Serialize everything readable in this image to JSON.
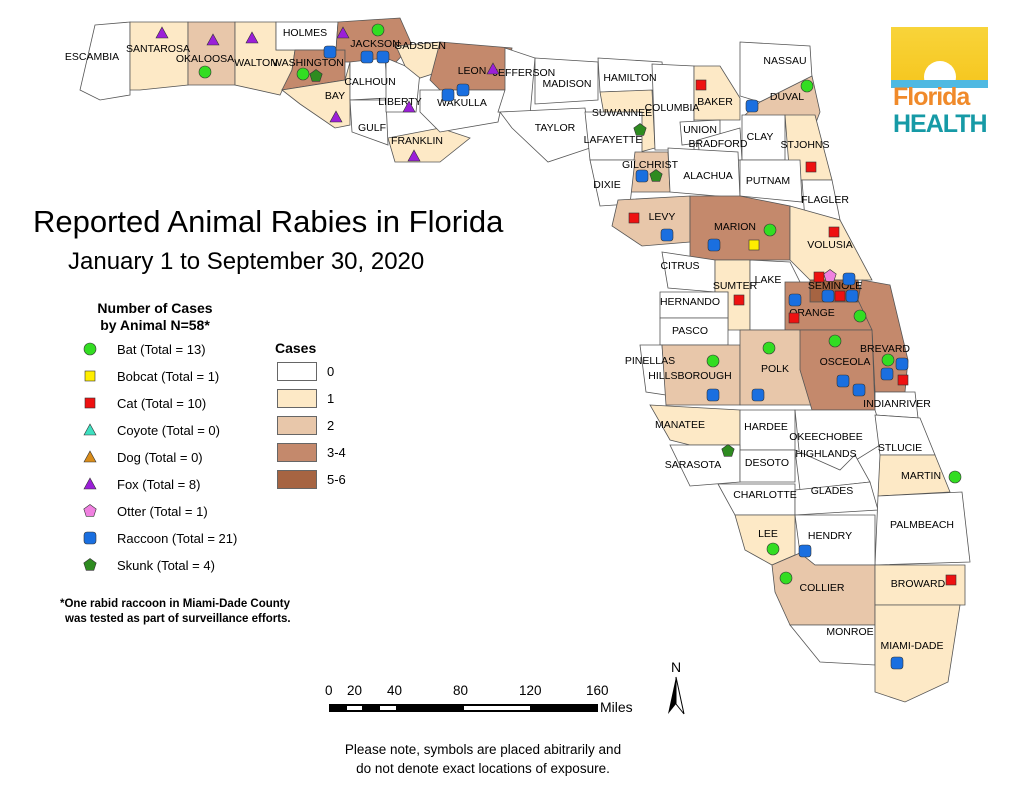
{
  "title": "Reported Animal Rabies in Florida",
  "subtitle": "January 1 to September 30, 2020",
  "logo": {
    "line1": "Florida",
    "line2": "HEALTH"
  },
  "animal_legend": {
    "heading_line1": "Number of Cases",
    "heading_line2": "by Animal N=58*",
    "items": [
      {
        "animal": "bat",
        "label": "Bat (Total = 13)",
        "shape": "circle",
        "color": "#33dd22"
      },
      {
        "animal": "bobcat",
        "label": "Bobcat (Total = 1)",
        "shape": "square",
        "color": "#ffee00"
      },
      {
        "animal": "cat",
        "label": "Cat (Total = 10)",
        "shape": "square",
        "color": "#ee1111"
      },
      {
        "animal": "coyote",
        "label": "Coyote (Total = 0)",
        "shape": "triangle",
        "color": "#3ee0c0"
      },
      {
        "animal": "dog",
        "label": "Dog (Total = 0)",
        "shape": "triangle",
        "color": "#d98c1a"
      },
      {
        "animal": "fox",
        "label": "Fox (Total = 8)",
        "shape": "triangle",
        "color": "#9b1fd8"
      },
      {
        "animal": "otter",
        "label": "Otter (Total = 1)",
        "shape": "pentagon",
        "color": "#f080e0"
      },
      {
        "animal": "raccoon",
        "label": "Raccoon (Total = 21)",
        "shape": "rounded-square",
        "color": "#1a6fe0"
      },
      {
        "animal": "skunk",
        "label": "Skunk (Total = 4)",
        "shape": "pentagon",
        "color": "#2e8b20"
      }
    ]
  },
  "cases_legend": {
    "heading": "Cases",
    "classes": [
      {
        "label": "0",
        "color": "#ffffff"
      },
      {
        "label": "1",
        "color": "#fde9c6"
      },
      {
        "label": "2",
        "color": "#e8c7aa"
      },
      {
        "label": "3-4",
        "color": "#c4896c"
      },
      {
        "label": "5-6",
        "color": "#a66442"
      }
    ]
  },
  "footnote_line1": "*One rabid raccoon in Miami-Dade County",
  "footnote_line2": "was tested as part of surveillance efforts.",
  "scale": {
    "ticks": [
      "0",
      "20",
      "40",
      "80",
      "120",
      "160"
    ],
    "unit": "Miles"
  },
  "north_label": "N",
  "note_line1": "Please note, symbols are placed abitrarily and",
  "note_line2": "do not denote exact locations of exposure.",
  "counties": [
    {
      "name": "ESCAMBIA",
      "cases": "0"
    },
    {
      "name": "SANTAROSA",
      "cases": "1"
    },
    {
      "name": "OKALOOSA",
      "cases": "2"
    },
    {
      "name": "WALTON",
      "cases": "1"
    },
    {
      "name": "HOLMES",
      "cases": "0"
    },
    {
      "name": "WASHINGTON",
      "cases": "3-4"
    },
    {
      "name": "JACKSON",
      "cases": "3-4"
    },
    {
      "name": "BAY",
      "cases": "1"
    },
    {
      "name": "CALHOUN",
      "cases": "0"
    },
    {
      "name": "GULF",
      "cases": "0"
    },
    {
      "name": "LIBERTY",
      "cases": "0"
    },
    {
      "name": "FRANKLIN",
      "cases": "1"
    },
    {
      "name": "GADSDEN",
      "cases": "1"
    },
    {
      "name": "LEON",
      "cases": "3-4"
    },
    {
      "name": "WAKULLA",
      "cases": "0"
    },
    {
      "name": "JEFFERSON",
      "cases": "0"
    },
    {
      "name": "MADISON",
      "cases": "0"
    },
    {
      "name": "TAYLOR",
      "cases": "0"
    },
    {
      "name": "HAMILTON",
      "cases": "0"
    },
    {
      "name": "SUWANNEE",
      "cases": "1"
    },
    {
      "name": "LAFAYETTE",
      "cases": "0"
    },
    {
      "name": "COLUMBIA",
      "cases": "0"
    },
    {
      "name": "BAKER",
      "cases": "1"
    },
    {
      "name": "NASSAU",
      "cases": "0"
    },
    {
      "name": "DUVAL",
      "cases": "2"
    },
    {
      "name": "UNION",
      "cases": "0"
    },
    {
      "name": "BRADFORD",
      "cases": "0"
    },
    {
      "name": "CLAY",
      "cases": "0"
    },
    {
      "name": "STJOHNS",
      "cases": "1"
    },
    {
      "name": "GILCHRIST",
      "cases": "2"
    },
    {
      "name": "ALACHUA",
      "cases": "0"
    },
    {
      "name": "DIXIE",
      "cases": "0"
    },
    {
      "name": "LEVY",
      "cases": "2"
    },
    {
      "name": "PUTNAM",
      "cases": "0"
    },
    {
      "name": "FLAGLER",
      "cases": "0"
    },
    {
      "name": "MARION",
      "cases": "3-4"
    },
    {
      "name": "VOLUSIA",
      "cases": "1"
    },
    {
      "name": "CITRUS",
      "cases": "0"
    },
    {
      "name": "SUMTER",
      "cases": "1"
    },
    {
      "name": "LAKE",
      "cases": "0"
    },
    {
      "name": "SEMINOLE",
      "cases": "5-6"
    },
    {
      "name": "ORANGE",
      "cases": "3-4"
    },
    {
      "name": "BREVARD",
      "cases": "3-4"
    },
    {
      "name": "HERNANDO",
      "cases": "0"
    },
    {
      "name": "PASCO",
      "cases": "0"
    },
    {
      "name": "PINELLAS",
      "cases": "0"
    },
    {
      "name": "HILLSBOROUGH",
      "cases": "2"
    },
    {
      "name": "POLK",
      "cases": "2"
    },
    {
      "name": "OSCEOLA",
      "cases": "3-4"
    },
    {
      "name": "INDIANRIVER",
      "cases": "0"
    },
    {
      "name": "MANATEE",
      "cases": "1"
    },
    {
      "name": "HARDEE",
      "cases": "0"
    },
    {
      "name": "OKEECHOBEE",
      "cases": "0"
    },
    {
      "name": "STLUCIE",
      "cases": "0"
    },
    {
      "name": "SARASOTA",
      "cases": "0"
    },
    {
      "name": "DESOTO",
      "cases": "0"
    },
    {
      "name": "HIGHLANDS",
      "cases": "0"
    },
    {
      "name": "MARTIN",
      "cases": "1"
    },
    {
      "name": "CHARLOTTE",
      "cases": "0"
    },
    {
      "name": "GLADES",
      "cases": "0"
    },
    {
      "name": "PALMBEACH",
      "cases": "0"
    },
    {
      "name": "LEE",
      "cases": "1"
    },
    {
      "name": "HENDRY",
      "cases": "0"
    },
    {
      "name": "COLLIER",
      "cases": "2"
    },
    {
      "name": "BROWARD",
      "cases": "1"
    },
    {
      "name": "MONROE",
      "cases": "0"
    },
    {
      "name": "MIAMI-DADE",
      "cases": "1"
    }
  ],
  "markers": [
    {
      "animal": "fox",
      "county": "SANTAROSA"
    },
    {
      "animal": "fox",
      "county": "OKALOOSA"
    },
    {
      "animal": "fox",
      "county": "WALTON"
    },
    {
      "animal": "fox",
      "county": "JACKSON"
    },
    {
      "animal": "fox",
      "county": "GADSDEN"
    },
    {
      "animal": "fox",
      "county": "LEON"
    },
    {
      "animal": "fox",
      "county": "BAY"
    },
    {
      "animal": "fox",
      "county": "FRANKLIN"
    },
    {
      "animal": "bat",
      "county": "OKALOOSA"
    },
    {
      "animal": "bat",
      "county": "WASHINGTON"
    },
    {
      "animal": "bat",
      "county": "JACKSON"
    },
    {
      "animal": "bat",
      "county": "DUVAL"
    },
    {
      "animal": "bat",
      "county": "MARION"
    },
    {
      "animal": "bat",
      "county": "ORANGE"
    },
    {
      "animal": "bat",
      "county": "OSCEOLA"
    },
    {
      "animal": "bat",
      "county": "POLK"
    },
    {
      "animal": "bat",
      "county": "HILLSBOROUGH"
    },
    {
      "animal": "bat",
      "county": "BREVARD"
    },
    {
      "animal": "bat",
      "county": "MARTIN"
    },
    {
      "animal": "bat",
      "county": "LEE"
    },
    {
      "animal": "bat",
      "county": "COLLIER"
    },
    {
      "animal": "bobcat",
      "county": "MARION"
    },
    {
      "animal": "cat",
      "county": "BAKER"
    },
    {
      "animal": "cat",
      "county": "STJOHNS"
    },
    {
      "animal": "cat",
      "county": "LEVY"
    },
    {
      "animal": "cat",
      "county": "VOLUSIA"
    },
    {
      "animal": "cat",
      "county": "SEMINOLE"
    },
    {
      "animal": "cat",
      "county": "SEMINOLE"
    },
    {
      "animal": "cat",
      "county": "SUMTER"
    },
    {
      "animal": "cat",
      "county": "ORANGE"
    },
    {
      "animal": "cat",
      "county": "BREVARD"
    },
    {
      "animal": "cat",
      "county": "BROWARD"
    },
    {
      "animal": "otter",
      "county": "SEMINOLE"
    },
    {
      "animal": "raccoon",
      "county": "WASHINGTON"
    },
    {
      "animal": "raccoon",
      "county": "JACKSON"
    },
    {
      "animal": "raccoon",
      "county": "JACKSON"
    },
    {
      "animal": "raccoon",
      "county": "LEON"
    },
    {
      "animal": "raccoon",
      "county": "LEON"
    },
    {
      "animal": "raccoon",
      "county": "DUVAL"
    },
    {
      "animal": "raccoon",
      "county": "GILCHRIST"
    },
    {
      "animal": "raccoon",
      "county": "LEVY"
    },
    {
      "animal": "raccoon",
      "county": "MARION"
    },
    {
      "animal": "raccoon",
      "county": "SEMINOLE"
    },
    {
      "animal": "raccoon",
      "county": "SEMINOLE"
    },
    {
      "animal": "raccoon",
      "county": "SEMINOLE"
    },
    {
      "animal": "raccoon",
      "county": "ORANGE"
    },
    {
      "animal": "raccoon",
      "county": "BREVARD"
    },
    {
      "animal": "raccoon",
      "county": "BREVARD"
    },
    {
      "animal": "raccoon",
      "county": "OSCEOLA"
    },
    {
      "animal": "raccoon",
      "county": "OSCEOLA"
    },
    {
      "animal": "raccoon",
      "county": "HILLSBOROUGH"
    },
    {
      "animal": "raccoon",
      "county": "POLK"
    },
    {
      "animal": "raccoon",
      "county": "COLLIER"
    },
    {
      "animal": "raccoon",
      "county": "MIAMI-DADE"
    },
    {
      "animal": "skunk",
      "county": "WASHINGTON"
    },
    {
      "animal": "skunk",
      "county": "SUWANNEE"
    },
    {
      "animal": "skunk",
      "county": "GILCHRIST"
    },
    {
      "animal": "skunk",
      "county": "MANATEE"
    }
  ]
}
